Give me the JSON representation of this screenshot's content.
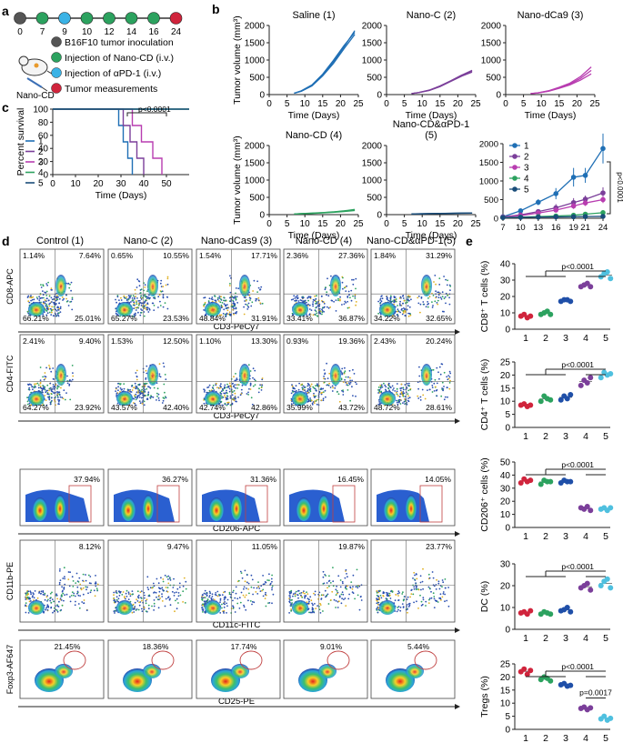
{
  "panel_labels": {
    "a": "a",
    "b": "b",
    "c": "c",
    "d": "d",
    "e": "e"
  },
  "timeline": {
    "days": [
      "0",
      "7",
      "9",
      "10",
      "12",
      "14",
      "16",
      "24"
    ],
    "dot_colors": [
      "#555555",
      "#2ca25f",
      "#3bb3e6",
      "#2ca25f",
      "#2ca25f",
      "#2ca25f",
      "#2ca25f",
      "#d0243c"
    ],
    "mouse_label": "Nano-CD",
    "legend": [
      {
        "text": "B16F10 tumor inoculation",
        "color": "#555555"
      },
      {
        "text": "Injection of Nano-CD (i.v.)",
        "color": "#2ca25f"
      },
      {
        "text": "Injection of αPD-1 (i.v.)",
        "color": "#3bb3e6"
      },
      {
        "text": "Tumor measurements",
        "color": "#d0243c"
      }
    ]
  },
  "chart_data": [
    {
      "type": "line",
      "title": "Saline (1)",
      "ylabel": "Tumor volume (mm³)",
      "xlabel": "Time (Days)",
      "xlim": [
        0,
        25
      ],
      "ylim": [
        0,
        2000
      ],
      "xticks": [
        "0",
        "5",
        "10",
        "15",
        "20",
        "25"
      ],
      "yticks": [
        "0",
        "500",
        "1000",
        "1500",
        "2000"
      ],
      "color": "#1f6fb5",
      "x": [
        7,
        9,
        12,
        15,
        18,
        21,
        24
      ],
      "series": [
        {
          "values": [
            40,
            100,
            260,
            560,
            950,
            1380,
            1850
          ]
        },
        {
          "values": [
            40,
            110,
            280,
            590,
            990,
            1420,
            1800
          ]
        },
        {
          "values": [
            40,
            95,
            250,
            540,
            900,
            1330,
            1740
          ]
        }
      ]
    },
    {
      "type": "line",
      "title": "Nano-C (2)",
      "ylabel": "",
      "xlabel": "Time (Days)",
      "xlim": [
        0,
        25
      ],
      "ylim": [
        0,
        2000
      ],
      "xticks": [
        "0",
        "5",
        "10",
        "15",
        "20",
        "25"
      ],
      "yticks": [
        "0",
        "500",
        "1000",
        "1500",
        "2000"
      ],
      "color": "#7b3f9a",
      "x": [
        7,
        9,
        12,
        15,
        18,
        21,
        24
      ],
      "series": [
        {
          "values": [
            30,
            60,
            130,
            250,
            400,
            560,
            700
          ]
        },
        {
          "values": [
            30,
            55,
            120,
            230,
            380,
            530,
            650
          ]
        },
        {
          "values": [
            30,
            58,
            125,
            240,
            390,
            545,
            680
          ]
        }
      ]
    },
    {
      "type": "line",
      "title": "Nano-dCa9 (3)",
      "ylabel": "",
      "xlabel": "Time (Days)",
      "xlim": [
        0,
        25
      ],
      "ylim": [
        0,
        2000
      ],
      "xticks": [
        "0",
        "5",
        "10",
        "15",
        "20",
        "25"
      ],
      "yticks": [
        "0",
        "500",
        "1000",
        "1500",
        "2000"
      ],
      "color": "#b83db0",
      "x": [
        7,
        9,
        12,
        15,
        18,
        21,
        24
      ],
      "series": [
        {
          "values": [
            30,
            50,
            110,
            210,
            330,
            520,
            800
          ]
        },
        {
          "values": [
            30,
            48,
            100,
            190,
            300,
            470,
            700
          ]
        },
        {
          "values": [
            30,
            45,
            95,
            180,
            280,
            420,
            600
          ]
        }
      ]
    },
    {
      "type": "line",
      "title": "Nano-CD (4)",
      "ylabel": "Tumor volume (mm³)",
      "xlabel": "Time (Days)",
      "xlim": [
        0,
        25
      ],
      "ylim": [
        0,
        2000
      ],
      "xticks": [
        "0",
        "5",
        "10",
        "15",
        "20",
        "25"
      ],
      "yticks": [
        "0",
        "500",
        "1000",
        "1500",
        "2000"
      ],
      "color": "#2ca25f",
      "x": [
        7,
        9,
        12,
        15,
        18,
        21,
        24
      ],
      "series": [
        {
          "values": [
            20,
            30,
            45,
            60,
            80,
            110,
            150
          ]
        },
        {
          "values": [
            20,
            28,
            40,
            55,
            75,
            100,
            130
          ]
        },
        {
          "values": [
            20,
            25,
            35,
            50,
            65,
            90,
            120
          ]
        }
      ]
    },
    {
      "type": "line",
      "title": "Nano-CD&αPD-1",
      "title2": "(5)",
      "ylabel": "",
      "xlabel": "Time (Days)",
      "xlim": [
        0,
        25
      ],
      "ylim": [
        0,
        2000
      ],
      "xticks": [
        "0",
        "5",
        "10",
        "15",
        "20",
        "25"
      ],
      "yticks": [
        "0",
        "500",
        "1000",
        "1500",
        "2000"
      ],
      "color": "#1a4d7a",
      "x": [
        7,
        9,
        12,
        15,
        18,
        21,
        24
      ],
      "series": [
        {
          "values": [
            20,
            25,
            30,
            35,
            40,
            45,
            50
          ]
        },
        {
          "values": [
            20,
            22,
            28,
            32,
            36,
            40,
            45
          ]
        },
        {
          "values": [
            20,
            24,
            29,
            33,
            38,
            42,
            48
          ]
        }
      ]
    },
    {
      "type": "line",
      "title": "",
      "xlabel": "",
      "xlim": [
        7,
        24
      ],
      "ylim": [
        0,
        2000
      ],
      "xticks": [
        "7",
        "10",
        "13",
        "16",
        "19",
        "21",
        "24"
      ],
      "yticks": [
        "0",
        "500",
        "1000",
        "1500",
        "2000"
      ],
      "x": [
        7,
        10,
        13,
        16,
        19,
        21,
        24
      ],
      "pvalue": "p<0.0001",
      "series": [
        {
          "name": "1",
          "color": "#1f6fb5",
          "values": [
            40,
            200,
            430,
            660,
            1100,
            1150,
            1870
          ],
          "err": [
            15,
            50,
            80,
            150,
            250,
            200,
            400
          ]
        },
        {
          "name": "2",
          "color": "#7b3f9a",
          "values": [
            35,
            90,
            180,
            280,
            420,
            510,
            680
          ],
          "err": [
            10,
            30,
            60,
            100,
            120,
            100,
            150
          ]
        },
        {
          "name": "3",
          "color": "#b83db0",
          "values": [
            30,
            70,
            140,
            220,
            330,
            410,
            500
          ],
          "err": [
            10,
            25,
            40,
            60,
            80,
            80,
            90
          ]
        },
        {
          "name": "4",
          "color": "#2ca25f",
          "values": [
            20,
            30,
            45,
            60,
            80,
            110,
            150
          ],
          "err": [
            5,
            8,
            10,
            15,
            20,
            25,
            30
          ]
        },
        {
          "name": "5",
          "color": "#1a4d7a",
          "values": [
            20,
            25,
            30,
            35,
            40,
            45,
            50
          ],
          "err": [
            5,
            5,
            8,
            8,
            10,
            10,
            10
          ]
        }
      ]
    },
    {
      "type": "line",
      "title": "",
      "ylabel": "Percent survival",
      "xlabel": "Time (Days)",
      "xlim": [
        0,
        60
      ],
      "ylim": [
        0,
        100
      ],
      "xticks": [
        "0",
        "10",
        "20",
        "30",
        "40",
        "50"
      ],
      "yticks": [
        "0",
        "20",
        "40",
        "60",
        "80",
        "100"
      ],
      "pvalue": "p<0.0001",
      "series": [
        {
          "name": "1",
          "color": "#1f6fb5",
          "steps": [
            [
              0,
              100
            ],
            [
              29,
              100
            ],
            [
              29,
              75
            ],
            [
              31,
              75
            ],
            [
              31,
              50
            ],
            [
              33,
              50
            ],
            [
              33,
              25
            ],
            [
              35,
              25
            ],
            [
              35,
              0
            ]
          ]
        },
        {
          "name": "2",
          "color": "#7b3f9a",
          "steps": [
            [
              0,
              100
            ],
            [
              31,
              100
            ],
            [
              31,
              75
            ],
            [
              34,
              75
            ],
            [
              34,
              50
            ],
            [
              37,
              50
            ],
            [
              37,
              25
            ],
            [
              40,
              25
            ],
            [
              40,
              0
            ]
          ]
        },
        {
          "name": "3",
          "color": "#b83db0",
          "steps": [
            [
              0,
              100
            ],
            [
              35,
              100
            ],
            [
              35,
              75
            ],
            [
              39,
              75
            ],
            [
              39,
              50
            ],
            [
              44,
              50
            ],
            [
              44,
              25
            ],
            [
              48,
              25
            ],
            [
              48,
              0
            ]
          ]
        },
        {
          "name": "4",
          "color": "#2ca25f",
          "steps": [
            [
              0,
              100
            ],
            [
              60,
              100
            ]
          ]
        },
        {
          "name": "5",
          "color": "#1a4d7a",
          "steps": [
            [
              0,
              100
            ],
            [
              60,
              100
            ]
          ]
        }
      ]
    },
    {
      "type": "scatter",
      "ylabel": "CD8⁺ T cells  (%)",
      "ylim": [
        0,
        40
      ],
      "yticks": [
        "0",
        "10",
        "20",
        "30",
        "40"
      ],
      "categories": [
        "1",
        "2",
        "3",
        "4",
        "5"
      ],
      "pvalue": "p<0.0001",
      "groups": [
        [
          8,
          9,
          7,
          8
        ],
        [
          9,
          10,
          11,
          9
        ],
        [
          17,
          18,
          18,
          17
        ],
        [
          26,
          27,
          28,
          26
        ],
        [
          32,
          34,
          35,
          31
        ]
      ]
    },
    {
      "type": "scatter",
      "ylabel": "CD4⁺ T cells  (%)",
      "ylim": [
        0,
        25
      ],
      "yticks": [
        "0",
        "5",
        "10",
        "15",
        "20",
        "25"
      ],
      "categories": [
        "1",
        "2",
        "3",
        "4",
        "5"
      ],
      "pvalue": "p<0.0001",
      "groups": [
        [
          8.5,
          9,
          8,
          8.5
        ],
        [
          10,
          12,
          11,
          10.5
        ],
        [
          10.5,
          12,
          11,
          12.5
        ],
        [
          16,
          18,
          17,
          19
        ],
        [
          19,
          21,
          20,
          20.5
        ]
      ]
    },
    {
      "type": "scatter",
      "ylabel": "CD206⁺ cells (%)",
      "ylim": [
        0,
        50
      ],
      "yticks": [
        "0",
        "10",
        "20",
        "30",
        "40",
        "50"
      ],
      "categories": [
        "1",
        "2",
        "3",
        "4",
        "5"
      ],
      "pvalue": "p<0.0001",
      "groups": [
        [
          34,
          37,
          35,
          36
        ],
        [
          33,
          36,
          35,
          35
        ],
        [
          34,
          36,
          35,
          35
        ],
        [
          15,
          14,
          16,
          13
        ],
        [
          14,
          15,
          13,
          15
        ]
      ]
    },
    {
      "type": "scatter",
      "ylabel": "DC (%)",
      "ylim": [
        0,
        30
      ],
      "yticks": [
        "0",
        "10",
        "20",
        "30"
      ],
      "categories": [
        "1",
        "2",
        "3",
        "4",
        "5"
      ],
      "pvalue": "p<0.0001",
      "groups": [
        [
          7.5,
          8,
          7,
          8.5
        ],
        [
          7,
          8,
          7.5,
          7
        ],
        [
          8.5,
          9,
          10,
          8
        ],
        [
          19,
          20,
          21,
          18
        ],
        [
          20,
          22,
          23,
          19
        ]
      ]
    },
    {
      "type": "scatter",
      "ylabel": "Tregs (%)",
      "ylim": [
        0,
        25
      ],
      "yticks": [
        "0",
        "5",
        "10",
        "15",
        "20",
        "25"
      ],
      "categories": [
        "1",
        "2",
        "3",
        "4",
        "5"
      ],
      "pvalue": "p<0.0001",
      "pvalue2": "p=0.0017",
      "groups": [
        [
          22,
          23,
          21,
          22.5
        ],
        [
          19,
          20,
          19.5,
          18.5
        ],
        [
          17,
          17.5,
          16.5,
          16.8
        ],
        [
          8,
          8.5,
          7.5,
          8.2
        ],
        [
          4,
          5,
          3.5,
          4.2
        ]
      ]
    }
  ],
  "flow": {
    "columns": [
      "Control (1)",
      "Nano-C (2)",
      "Nano-dCas9 (3)",
      "Nano-CD (4)",
      "Nano-CD&αPD-1(5)"
    ],
    "rows": [
      {
        "ylabel": "CD8-APC",
        "xlabel": "CD3-PeCy7",
        "kind": "quad",
        "q": [
          [
            "1.14%",
            "7.64%",
            "66.21%",
            "25.01%"
          ],
          [
            "0.65%",
            "10.55%",
            "65.27%",
            "23.53%"
          ],
          [
            "1.54%",
            "17.71%",
            "48.84%",
            "31.91%"
          ],
          [
            "2.36%",
            "27.36%",
            "33.41%",
            "36.87%"
          ],
          [
            "1.84%",
            "31.29%",
            "34.22%",
            "32.65%"
          ]
        ]
      },
      {
        "ylabel": "CD4-FITC",
        "xlabel": "CD3-PeCy7",
        "kind": "quad",
        "q": [
          [
            "2.41%",
            "9.40%",
            "64.27%",
            "23.92%"
          ],
          [
            "1.53%",
            "12.50%",
            "43.57%",
            "42.40%"
          ],
          [
            "1.10%",
            "13.30%",
            "42.74%",
            "42.86%"
          ],
          [
            "0.93%",
            "19.36%",
            "35.99%",
            "43.72%"
          ],
          [
            "2.43%",
            "20.24%",
            "48.72%",
            "28.61%"
          ]
        ]
      },
      {
        "ylabel": "",
        "xlabel": "CD206-APC",
        "kind": "hist",
        "v": [
          "37.94%",
          "36.27%",
          "31.36%",
          "16.45%",
          "14.05%"
        ]
      },
      {
        "ylabel": "CD11b-PE",
        "xlabel": "CD11c-FITC",
        "kind": "scat",
        "v": [
          "8.12%",
          "9.47%",
          "11.05%",
          "19.87%",
          "23.77%"
        ]
      },
      {
        "ylabel": "Foxp3-AF647",
        "xlabel": "CD25-PE",
        "kind": "contour",
        "v": [
          "21.45%",
          "18.36%",
          "17.74%",
          "9.01%",
          "5.44%"
        ]
      }
    ]
  }
}
